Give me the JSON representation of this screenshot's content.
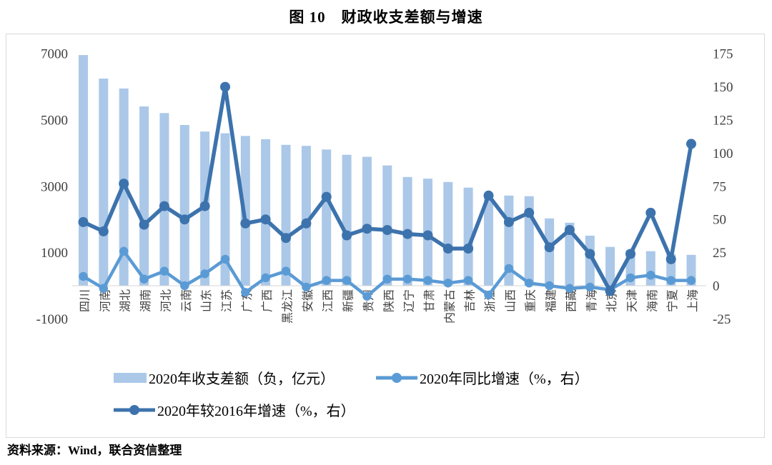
{
  "page": {
    "title": "图 10　财政收支差额与增速",
    "source": "资料来源：Wind，联合资信整理"
  },
  "chart_data": {
    "type": "bar",
    "subtype": "combo-bar-line",
    "title": "图 10　财政收支差额与增速",
    "categories": [
      "四川",
      "河南",
      "湖北",
      "湖南",
      "河北",
      "云南",
      "山东",
      "江苏",
      "广东",
      "广西",
      "黑龙江",
      "安徽",
      "江西",
      "新疆",
      "贵州",
      "陕西",
      "辽宁",
      "甘肃",
      "内蒙古",
      "吉林",
      "浙江",
      "山西",
      "重庆",
      "福建",
      "西藏",
      "青海",
      "北京",
      "天津",
      "海南",
      "宁夏",
      "上海"
    ],
    "series": [
      {
        "name": "2020年收支差额（负，亿元）",
        "type": "bar",
        "axis": "left",
        "color": "#abc8e8",
        "values": [
          6960,
          6250,
          5950,
          5410,
          5210,
          4850,
          4650,
          4600,
          4520,
          4420,
          4250,
          4220,
          4110,
          3950,
          3890,
          3630,
          3280,
          3230,
          3130,
          2960,
          2730,
          2720,
          2700,
          2030,
          1900,
          1510,
          1170,
          1080,
          1040,
          950,
          930
        ]
      },
      {
        "name": "2020年同比增速（%，右）",
        "type": "line",
        "axis": "right",
        "color": "#5b9bd5",
        "values": [
          7,
          -2,
          26,
          5,
          11,
          0,
          9,
          20,
          -5,
          6,
          11,
          -1,
          4,
          4,
          -8,
          5,
          5,
          4,
          2,
          4,
          -7,
          13,
          2,
          0,
          -2,
          -1,
          -3,
          6,
          8,
          4,
          4
        ]
      },
      {
        "name": "2020年较2016年增速（%，右）",
        "type": "line",
        "axis": "right",
        "color": "#3d73ad",
        "values": [
          48,
          41,
          77,
          46,
          60,
          50,
          60,
          150,
          47,
          50,
          36,
          47,
          67,
          38,
          43,
          42,
          39,
          38,
          28,
          28,
          68,
          48,
          55,
          29,
          42,
          24,
          -4,
          24,
          55,
          20,
          107
        ]
      }
    ],
    "left_axis": {
      "min": -1000,
      "max": 7000,
      "ticks": [
        7000,
        5000,
        3000,
        1000,
        -1000
      ]
    },
    "right_axis": {
      "min": -25,
      "max": 175,
      "ticks": [
        175,
        150,
        125,
        100,
        75,
        50,
        25,
        0,
        -25
      ]
    },
    "grid": "off",
    "legend_position": "bottom",
    "x_label_rotation": -90
  }
}
